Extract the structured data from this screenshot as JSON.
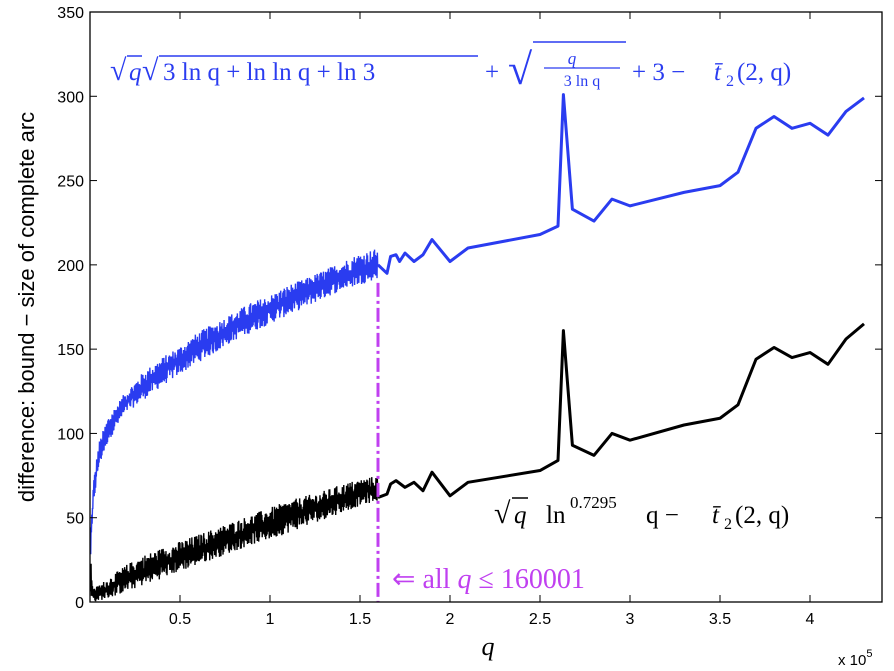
{
  "chart_data": {
    "type": "line",
    "xlabel": "q",
    "ylabel": "difference: bound − size of complete arc",
    "x_multiplier": "x 10",
    "x_multiplier_exp": "5",
    "xlim": [
      0,
      4.4
    ],
    "ylim": [
      0,
      350
    ],
    "x_ticks": [
      0.5,
      1,
      1.5,
      2,
      2.5,
      3,
      3.5,
      4
    ],
    "x_tick_labels": [
      "0.5",
      "1",
      "1.5",
      "2",
      "2.5",
      "3",
      "3.5",
      "4"
    ],
    "y_ticks": [
      0,
      50,
      100,
      150,
      200,
      250,
      300,
      350
    ],
    "y_tick_labels": [
      "0",
      "50",
      "100",
      "150",
      "200",
      "250",
      "300",
      "350"
    ],
    "series": [
      {
        "name": "√q√(3 ln q + ln ln q + ln 3) + √(q/(3 ln q)) + 3 − t̄₂(2, q)",
        "color": "#2a3cf0",
        "dense_range": [
          0.002,
          1.6
        ],
        "dense_upper": [
          [
            0.002,
            40
          ],
          [
            0.02,
            73
          ],
          [
            0.05,
            95
          ],
          [
            0.1,
            110
          ],
          [
            0.2,
            125
          ],
          [
            0.3,
            137
          ],
          [
            0.4,
            145
          ],
          [
            0.5,
            152
          ],
          [
            0.6,
            160
          ],
          [
            0.7,
            166
          ],
          [
            0.8,
            172
          ],
          [
            0.9,
            178
          ],
          [
            1.0,
            182
          ],
          [
            1.1,
            188
          ],
          [
            1.2,
            192
          ],
          [
            1.3,
            197
          ],
          [
            1.4,
            202
          ],
          [
            1.5,
            207
          ],
          [
            1.6,
            210
          ]
        ],
        "dense_lower": [
          [
            0.002,
            22
          ],
          [
            0.02,
            58
          ],
          [
            0.05,
            80
          ],
          [
            0.1,
            95
          ],
          [
            0.2,
            112
          ],
          [
            0.3,
            120
          ],
          [
            0.4,
            128
          ],
          [
            0.5,
            135
          ],
          [
            0.6,
            142
          ],
          [
            0.7,
            148
          ],
          [
            0.8,
            155
          ],
          [
            0.9,
            160
          ],
          [
            1.0,
            165
          ],
          [
            1.1,
            170
          ],
          [
            1.2,
            175
          ],
          [
            1.3,
            180
          ],
          [
            1.4,
            185
          ],
          [
            1.5,
            188
          ],
          [
            1.6,
            192
          ]
        ],
        "sparse": [
          [
            1.6,
            200
          ],
          [
            1.65,
            195
          ],
          [
            1.67,
            205
          ],
          [
            1.7,
            206
          ],
          [
            1.72,
            202
          ],
          [
            1.75,
            207
          ],
          [
            1.8,
            202
          ],
          [
            1.85,
            206
          ],
          [
            1.9,
            215
          ],
          [
            2.0,
            202
          ],
          [
            2.1,
            210
          ],
          [
            2.5,
            218
          ],
          [
            2.6,
            223
          ],
          [
            2.63,
            301
          ],
          [
            2.68,
            233
          ],
          [
            2.8,
            226
          ],
          [
            2.9,
            239
          ],
          [
            3.0,
            235
          ],
          [
            3.3,
            243
          ],
          [
            3.5,
            247
          ],
          [
            3.6,
            255
          ],
          [
            3.7,
            281
          ],
          [
            3.8,
            288
          ],
          [
            3.9,
            281
          ],
          [
            4.0,
            284
          ],
          [
            4.1,
            277
          ],
          [
            4.2,
            291
          ],
          [
            4.3,
            299
          ]
        ]
      },
      {
        "name": "√q ln^0.7295 q − t̄₂(2, q)",
        "color": "#000000",
        "dense_range": [
          0.002,
          1.6
        ],
        "dense_upper": [
          [
            0.002,
            27
          ],
          [
            0.02,
            8
          ],
          [
            0.1,
            14
          ],
          [
            0.2,
            22
          ],
          [
            0.3,
            28
          ],
          [
            0.4,
            32
          ],
          [
            0.5,
            36
          ],
          [
            0.6,
            40
          ],
          [
            0.7,
            44
          ],
          [
            0.8,
            48
          ],
          [
            0.9,
            52
          ],
          [
            1.0,
            56
          ],
          [
            1.1,
            60
          ],
          [
            1.2,
            63
          ],
          [
            1.3,
            66
          ],
          [
            1.4,
            70
          ],
          [
            1.5,
            73
          ],
          [
            1.6,
            75
          ]
        ],
        "dense_lower": [
          [
            0.002,
            0
          ],
          [
            0.02,
            0
          ],
          [
            0.1,
            2
          ],
          [
            0.2,
            6
          ],
          [
            0.3,
            10
          ],
          [
            0.4,
            14
          ],
          [
            0.5,
            18
          ],
          [
            0.6,
            22
          ],
          [
            0.7,
            26
          ],
          [
            0.8,
            30
          ],
          [
            0.9,
            34
          ],
          [
            1.0,
            37
          ],
          [
            1.1,
            41
          ],
          [
            1.2,
            45
          ],
          [
            1.3,
            49
          ],
          [
            1.4,
            53
          ],
          [
            1.5,
            57
          ],
          [
            1.6,
            60
          ]
        ],
        "sparse": [
          [
            1.6,
            62
          ],
          [
            1.65,
            64
          ],
          [
            1.67,
            70
          ],
          [
            1.7,
            72
          ],
          [
            1.75,
            68
          ],
          [
            1.8,
            71
          ],
          [
            1.85,
            66
          ],
          [
            1.9,
            77
          ],
          [
            2.0,
            63
          ],
          [
            2.1,
            71
          ],
          [
            2.5,
            78
          ],
          [
            2.6,
            84
          ],
          [
            2.63,
            161
          ],
          [
            2.68,
            93
          ],
          [
            2.8,
            87
          ],
          [
            2.9,
            100
          ],
          [
            3.0,
            96
          ],
          [
            3.3,
            105
          ],
          [
            3.5,
            109
          ],
          [
            3.6,
            117
          ],
          [
            3.7,
            144
          ],
          [
            3.8,
            151
          ],
          [
            3.9,
            145
          ],
          [
            4.0,
            148
          ],
          [
            4.1,
            141
          ],
          [
            4.2,
            156
          ],
          [
            4.3,
            165
          ]
        ]
      }
    ],
    "vertical_marker": {
      "x": 1.60001,
      "color": "#c040f0"
    },
    "annotation": {
      "arrow": "⇐",
      "text": "all",
      "q": "q",
      "le": "≤",
      "value": "160001",
      "color": "#c040f0"
    },
    "formula_blue": {
      "sqrt": "√",
      "q": "q",
      "inner": "3 ln q + ln ln q + ln 3",
      "plus": "+",
      "frac_num": "q",
      "frac_den": "3 ln q",
      "tail": "+ 3 −",
      "tbar": "t̄",
      "sub": "2",
      "args": "(2, q)"
    },
    "formula_black": {
      "sqrt": "√",
      "q": "q",
      "ln": "ln",
      "exp": "0.7295",
      "tail": "q −",
      "tbar": "t̄",
      "sub": "2",
      "args": "(2, q)"
    }
  }
}
